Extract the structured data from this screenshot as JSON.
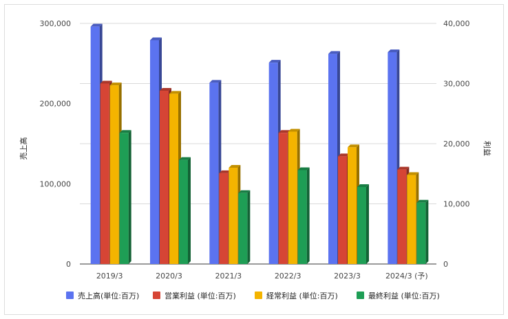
{
  "chart_data": {
    "type": "bar",
    "categories": [
      "2019/3",
      "2020/3",
      "2021/3",
      "2022/3",
      "2023/3",
      "2024/3 (予)"
    ],
    "series": [
      {
        "name": "売上高(単位:百万)",
        "axis": "left",
        "color": "#5b73f0",
        "values": [
          296000,
          279000,
          226000,
          251000,
          262000,
          264000
        ]
      },
      {
        "name": "営業利益 (単位:百万)",
        "axis": "right",
        "color": "#d64535",
        "values": [
          30000,
          28800,
          15100,
          21800,
          17900,
          15700
        ]
      },
      {
        "name": "経常利益 (単位:百万)",
        "axis": "right",
        "color": "#f4b400",
        "values": [
          29700,
          28300,
          16000,
          22000,
          19400,
          14800
        ]
      },
      {
        "name": "最終利益 (単位:百万)",
        "axis": "right",
        "color": "#1e9e55",
        "values": [
          21800,
          17300,
          11800,
          15600,
          12800,
          10200
        ]
      }
    ],
    "left_axis": {
      "label": "売上高",
      "min": 0,
      "max": 300000,
      "ticks": [
        "0",
        "100,000",
        "200,000",
        "300,000"
      ]
    },
    "right_axis": {
      "label": "利益",
      "min": 0,
      "max": 40000,
      "ticks": [
        "0",
        "10,000",
        "20,000",
        "30,000",
        "40,000"
      ]
    },
    "grid": true,
    "legend_position": "bottom"
  }
}
